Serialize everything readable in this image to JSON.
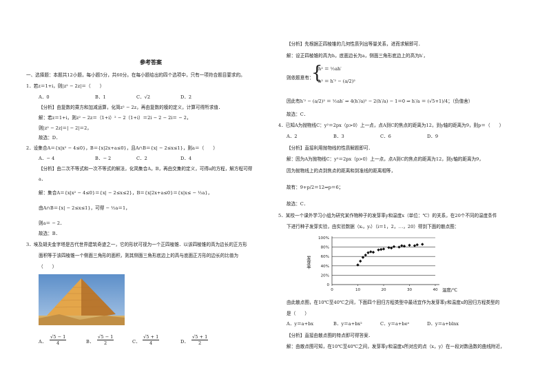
{
  "left": {
    "title": "参考答案",
    "section1": "一、选择题：本题共12小题，每小题5分，共60分。在每小题给出的四个选项中，只有一项符合题目要求的。",
    "q1": {
      "stem": "1．若z＝1+i，则|z² − 2z|＝（　　）",
      "options": [
        "A．0",
        "B．1",
        "C．√2",
        "D．2"
      ],
      "analysis": "【分析】由复数的乘方和加减运算，化简z² − 2z，再由复数的模的定义，计算可得所求值．",
      "sol1": "解：若z＝1+i，则z² − 2z＝（1+i）² − 2（1+i）＝2i − 2 − 2i＝ − 2，",
      "sol2": "则|z² − 2z|＝| − 2|＝2，",
      "sol3": "故选：D．"
    },
    "q2": {
      "stem": "2．设集合A＝{x|x² − 4≤0}，B＝{x|2x+a≤0}，且A∩B＝{x| − 2≤x≤1}，则a＝（　　）",
      "options": [
        "A．− 4",
        "B．− 2",
        "C．2",
        "D．4"
      ],
      "analysis1": "【分析】由二次不等式和一次不等式的解法，化简集合A，B，再由交集的定义，可得a的方程，解方程可得",
      "analysis2": "a．",
      "sol1": "解：集合A＝{x|x² − 4≤0}＝{x| − 2≤x≤2}，B＝{x|2x+a≤0}＝{x|x≤ − ½a}，",
      "sol2": "由A∩B＝{x| − 2≤x≤1}，可得 − ½a＝1，",
      "sol3": "则a＝ − 2．",
      "sol4": "故选：B．"
    },
    "q3": {
      "stem1": "3．埃及胡夫金字塔是古代世界建筑奇迹之一，它的形状可视为一个正四棱锥．以该四棱锥的高为边长的正方形",
      "stem2": "面积等于该四棱锥一个侧面三角形的面积，则其侧面三角形底边上的高与底面正方形的边长的比值为",
      "stem3": "（　　）",
      "options": [
        {
          "label": "A．",
          "num": "√5 − 1",
          "den": "4"
        },
        {
          "label": "B．",
          "num": "√5 − 1",
          "den": "2"
        },
        {
          "label": "C．",
          "num": "√5 + 1",
          "den": "4"
        },
        {
          "label": "D．",
          "num": "√5 + 1",
          "den": "2"
        }
      ]
    }
  },
  "right": {
    "q3cont": {
      "analysis": "【分析】先根据正四棱锥的几何性质列出等量关系，进而求解即可．",
      "sol1": "解：设正四棱锥的高为h，底面边长为a，侧面三角形底边上的高为h′，",
      "sys_label": "则依题意有：",
      "sys1": "h² ＝ ½ah′",
      "sys2": "h² ＝ h′² − (a/2)²",
      "sol2": "因此有h′² − (a/2)² ＝ ½ah′ ⇒ 4(h′/a)² − 2(h′/a) − 1＝0 ⇒ h′/a ＝ (√5+1)/4；（负值舍）",
      "sol3": "故选：C．"
    },
    "q4": {
      "stem": "4．已知A为抛物线C：y²＝2px（p>0）上一点，点A到C的焦点的距离为12，到y轴的距离为9，则p＝（　　）",
      "options": [
        "A．2",
        "B．3",
        "C．6",
        "D．9"
      ],
      "analysis": "【分析】直接利用抛物线的性质解题即可．",
      "sol1": "解：因为A为抛物线C：y²＝2px（p>0）上一点，点A到C的焦点的距离为12，到y轴的距离为9，",
      "sol2": "因为抛物线上的点到焦点的距离和到准线的距离相等，",
      "sol3": "故有：9+p/2＝12⇒p＝6；",
      "sol4": "故选：C．"
    },
    "q5": {
      "stem1": "5．某校一个课外学习小组为研究某作物种子的发芽率y和温度x（单位：℃）的关系，在20个不同的温度条件",
      "stem2": "下进行种子发芽实验，由实验数据（xᵢ，yᵢ）（i＝1，2，⋯，20）得到下面的散点图：",
      "after1": "由此散点图，在10℃至40℃之间，下面四个回归方程类型中最适宜作为发芽率y和温度x的回归方程类型的",
      "after2": "是（　　）",
      "options": [
        "A．y＝a+bx",
        "B．y＝a+bx²",
        "C．y＝a+beˣ",
        "D．y＝a+blnx"
      ],
      "analysis": "【分析】直接由散点图的特点即可得答案．",
      "sol1": "解：由散点图可知，在10℃至40℃之间，发芽率y和温度x所对应的点（x，y）在一段对数函数的曲线附近，"
    }
  },
  "chart_data": {
    "type": "scatter",
    "xlabel": "温度/℃",
    "ylabel": "发芽率",
    "xticks": [
      "0",
      "10",
      "20",
      "30",
      "40"
    ],
    "yticks": [
      "0",
      "20%",
      "40%",
      "60%",
      "80%",
      "100%"
    ],
    "xlim": [
      0,
      40
    ],
    "ylim": [
      0,
      100
    ],
    "grid": "horizontal",
    "points": [
      [
        10,
        42
      ],
      [
        11,
        50
      ],
      [
        12,
        58
      ],
      [
        13,
        63
      ],
      [
        14,
        68
      ],
      [
        15,
        70
      ],
      [
        16,
        69
      ],
      [
        18,
        74
      ],
      [
        19,
        75
      ],
      [
        20,
        76
      ],
      [
        22,
        79
      ],
      [
        23,
        78
      ],
      [
        24,
        81
      ],
      [
        26,
        80
      ],
      [
        27,
        83
      ],
      [
        28,
        82
      ],
      [
        30,
        84
      ],
      [
        32,
        83
      ],
      [
        33,
        85
      ],
      [
        35,
        86
      ]
    ]
  }
}
